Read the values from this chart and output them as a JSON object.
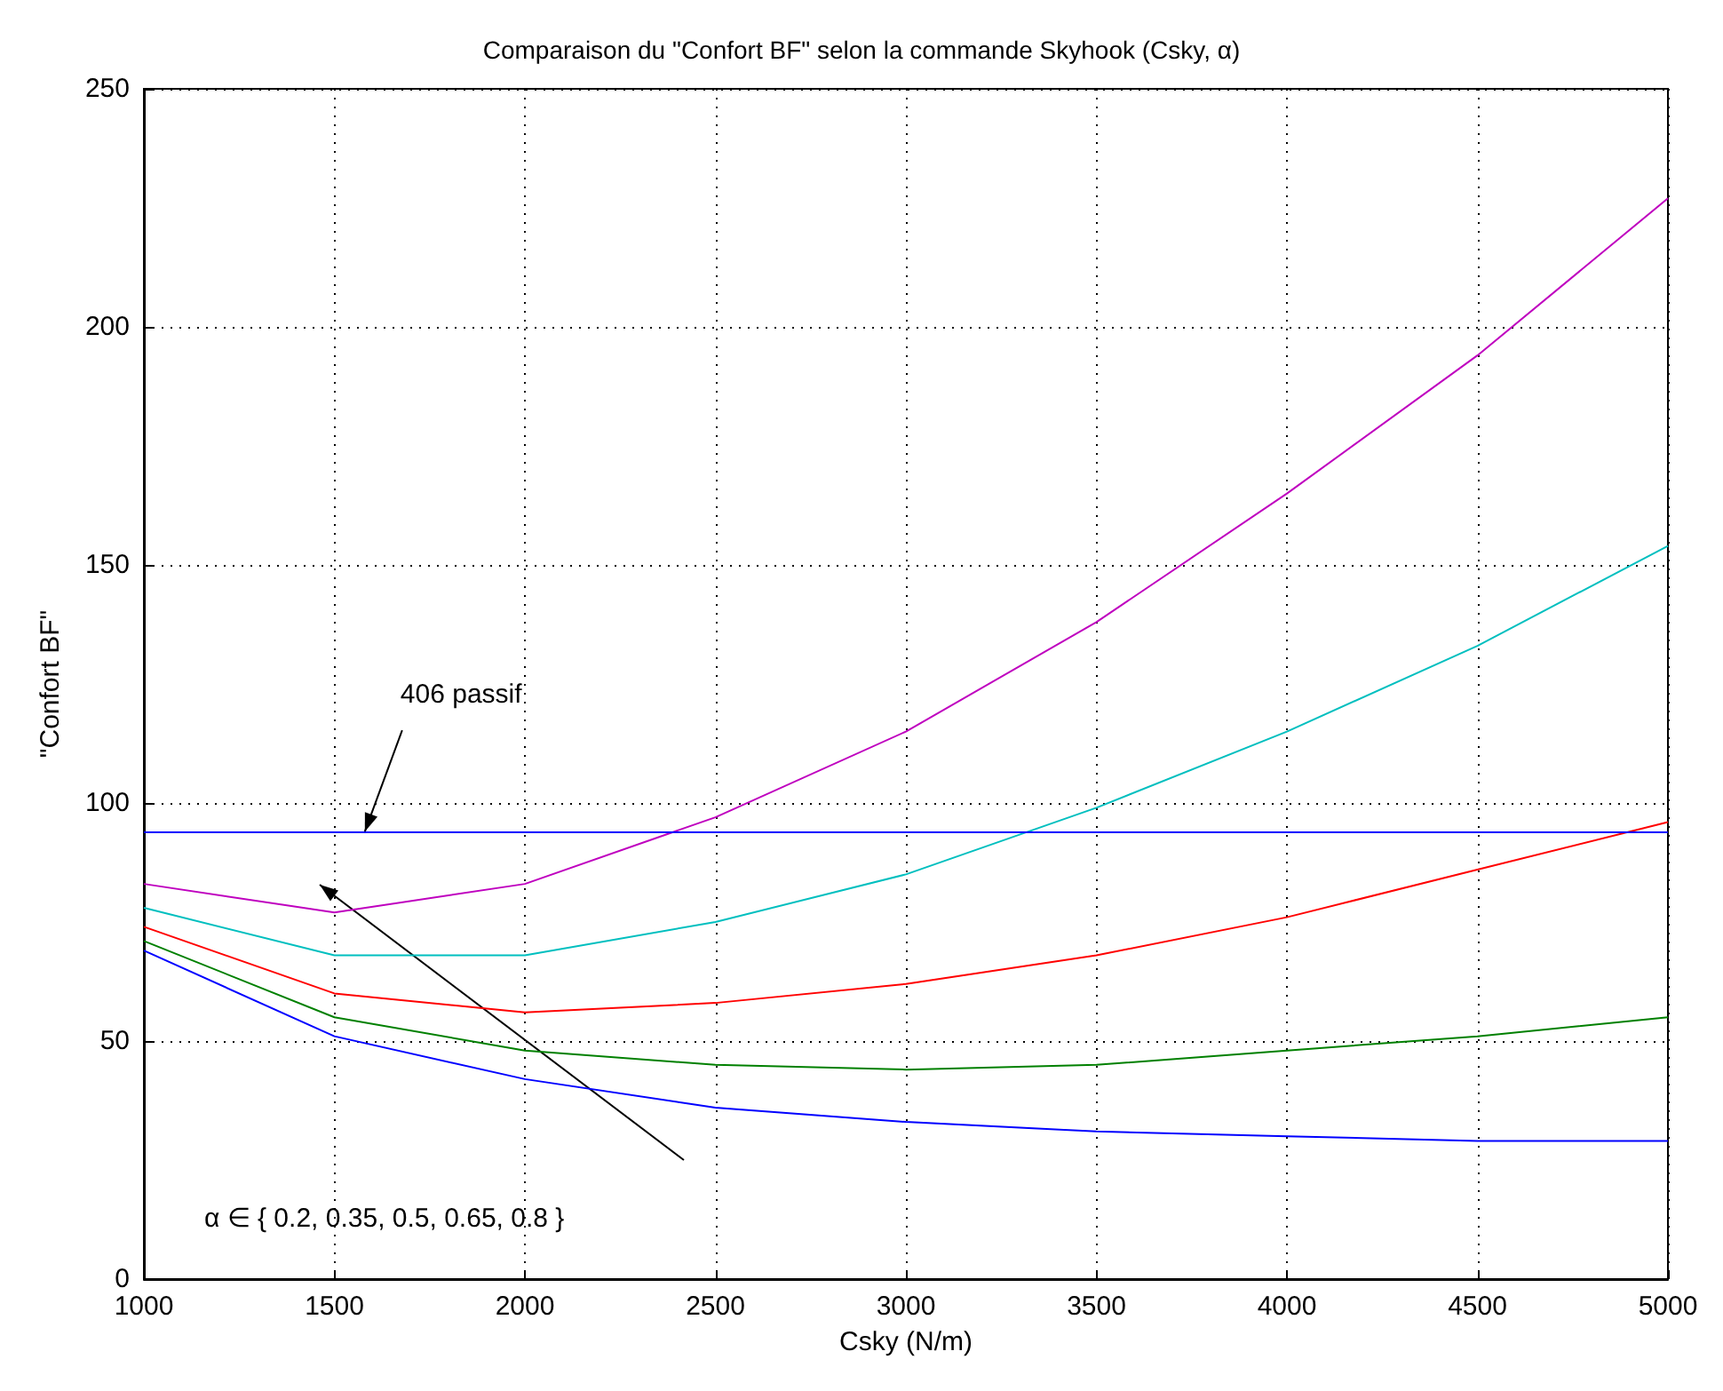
{
  "chart_data": {
    "type": "line",
    "title": "Comparaison du \"Confort BF\" selon la commande Skyhook (Csky, α)",
    "xlabel": "Csky (N/m)",
    "ylabel": "\"Confort BF\"",
    "x": [
      1000,
      1500,
      2000,
      2500,
      3000,
      3500,
      4000,
      4500,
      5000
    ],
    "series": [
      {
        "color": "#0000ff",
        "values": [
          69,
          51,
          42,
          36,
          33,
          31,
          30,
          29,
          29
        ]
      },
      {
        "color": "#008000",
        "values": [
          71,
          55,
          48,
          45,
          44,
          45,
          48,
          51,
          55
        ]
      },
      {
        "color": "#ff0000",
        "values": [
          74,
          60,
          56,
          58,
          62,
          68,
          76,
          86,
          96
        ]
      },
      {
        "color": "#00bfbf",
        "values": [
          78,
          68,
          68,
          75,
          85,
          99,
          115,
          133,
          154
        ]
      },
      {
        "color": "#bf00bf",
        "values": [
          83,
          77,
          83,
          97,
          115,
          138,
          165,
          194,
          227
        ]
      }
    ],
    "ref_lines": [
      {
        "axis": "y",
        "value": 94,
        "color": "#0000ff"
      }
    ],
    "annotations": [
      {
        "text": "406 passif",
        "x": 1580,
        "y": 94
      },
      "α ∈ { 0.2, 0.35, 0.5, 0.65, 0.8 }"
    ],
    "xlim": [
      1000,
      5000
    ],
    "xticks": [
      1000,
      1500,
      2000,
      2500,
      3000,
      3500,
      4000,
      4500,
      5000
    ],
    "ylim": [
      0,
      250
    ],
    "yticks": [
      0,
      50,
      100,
      150,
      200,
      250
    ],
    "grid": true,
    "marker": "none",
    "line_style": "solid"
  }
}
